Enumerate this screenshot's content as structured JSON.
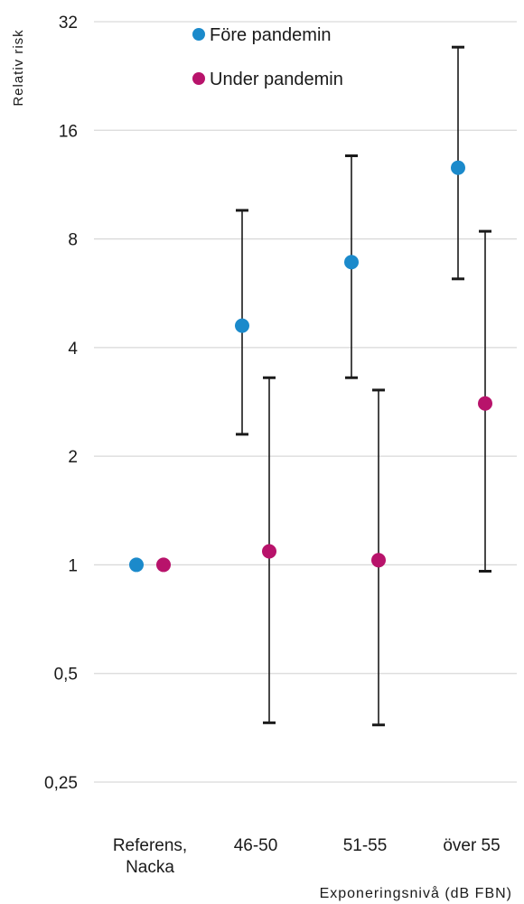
{
  "chart_data": {
    "type": "scatter",
    "ylabel": "Relativ risk",
    "xlabel": "Exponeringsnivå (dB FBN)",
    "y_scale": "log2",
    "ylim": [
      0.25,
      32
    ],
    "y_ticks": [
      {
        "value": 0.25,
        "label": "0,25"
      },
      {
        "value": 0.5,
        "label": "0,5"
      },
      {
        "value": 1,
        "label": "1"
      },
      {
        "value": 2,
        "label": "2"
      },
      {
        "value": 4,
        "label": "4"
      },
      {
        "value": 8,
        "label": "8"
      },
      {
        "value": 16,
        "label": "16"
      },
      {
        "value": 32,
        "label": "32"
      }
    ],
    "categories": [
      [
        "Referens,",
        "Nacka"
      ],
      [
        "46-50"
      ],
      [
        "51-55"
      ],
      [
        "över 55"
      ]
    ],
    "grid": true,
    "legend_position": "top-left",
    "series": [
      {
        "name": "Före pandemin",
        "color": "#1b8acb",
        "values": [
          1,
          4.6,
          6.9,
          12.6
        ],
        "ci_low": [
          null,
          2.3,
          3.3,
          6.2
        ],
        "ci_high": [
          null,
          9.6,
          13.6,
          27.2
        ]
      },
      {
        "name": "Under pandemin",
        "color": "#b8136b",
        "values": [
          1,
          1.09,
          1.03,
          2.8
        ],
        "ci_low": [
          null,
          0.365,
          0.36,
          0.96
        ],
        "ci_high": [
          null,
          3.3,
          3.05,
          8.4
        ]
      }
    ]
  }
}
